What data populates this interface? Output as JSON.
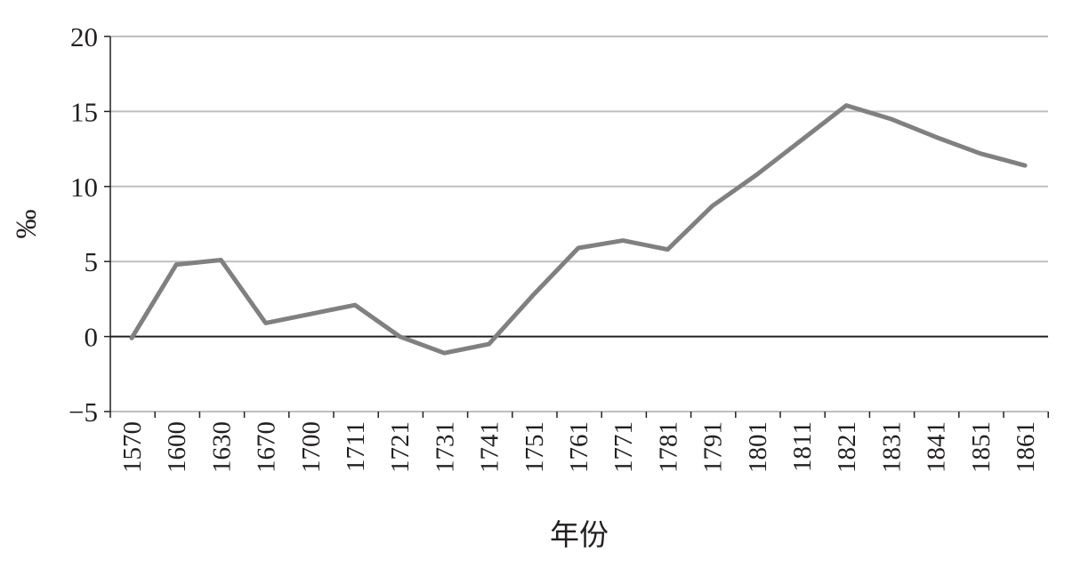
{
  "chart_data": {
    "type": "line",
    "title": "",
    "xlabel": "年份",
    "ylabel": "‰",
    "ylim": [
      -5,
      20
    ],
    "yticks": [
      -5,
      0,
      5,
      10,
      15,
      20
    ],
    "ytick_labels": [
      "−5",
      "0",
      "5",
      "10",
      "15",
      "20"
    ],
    "grid": true,
    "legend": "none",
    "categories": [
      "1570",
      "1600",
      "1630",
      "1670",
      "1700",
      "1711",
      "1721",
      "1731",
      "1741",
      "1751",
      "1761",
      "1771",
      "1781",
      "1791",
      "1801",
      "1811",
      "1821",
      "1831",
      "1841",
      "1851",
      "1861"
    ],
    "series": [
      {
        "values": [
          -0.1,
          4.8,
          5.1,
          0.9,
          1.5,
          2.1,
          0.0,
          -1.1,
          -0.5,
          2.8,
          5.9,
          6.4,
          5.8,
          8.7,
          10.8,
          13.1,
          15.4,
          14.5,
          13.3,
          12.2,
          11.4
        ]
      }
    ],
    "colors": {
      "line": "#808080",
      "grid": "#bfbfbf",
      "zero_line": "#231f20",
      "axis": "#231f20"
    }
  }
}
